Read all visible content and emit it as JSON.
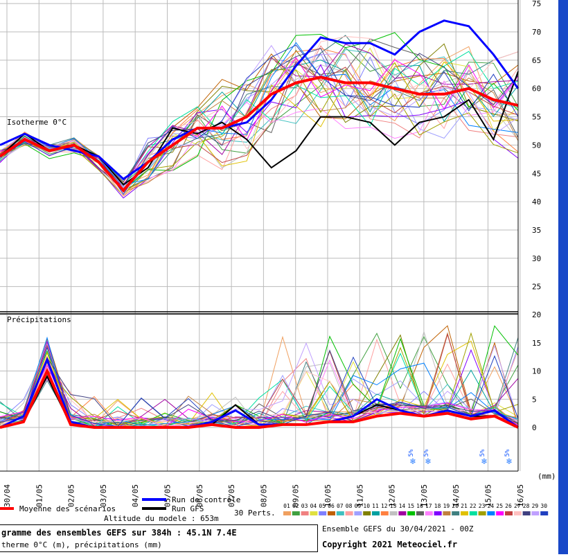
{
  "chart_data": {
    "type": "line",
    "x_tick_labels": [
      "30/04",
      "01/05",
      "02/05",
      "03/05",
      "04/05",
      "05/05",
      "06/05",
      "07/05",
      "08/05",
      "09/05",
      "10/05",
      "11/05",
      "12/05",
      "13/05",
      "14/05",
      "15/05",
      "16/05"
    ],
    "top_panel": {
      "label": "Isotherme 0°C",
      "y_ticks": [
        75,
        70,
        65,
        60,
        55,
        50,
        45,
        40,
        35,
        30,
        25
      ],
      "ylim": [
        21,
        75
      ],
      "mean_series": [
        48,
        51,
        49,
        50,
        47,
        42,
        47,
        50,
        53,
        53,
        55,
        59,
        61,
        62,
        61,
        61,
        60,
        59,
        59,
        60,
        58,
        57
      ],
      "control_series": [
        50,
        52,
        50,
        49,
        48,
        44,
        47,
        51,
        53,
        53,
        54,
        58,
        64,
        69,
        68,
        68,
        66,
        70,
        72,
        71,
        66,
        60
      ],
      "gfs_series": [
        48,
        52,
        49,
        50,
        48,
        43,
        46,
        53,
        52,
        54,
        51,
        46,
        49,
        55,
        55,
        54,
        50,
        54,
        55,
        58,
        51,
        63
      ]
    },
    "bottom_panel": {
      "label": "Précipitations",
      "unit_label": "(mm)",
      "y_ticks": [
        20,
        15,
        10,
        5,
        0
      ],
      "ylim": [
        0,
        20
      ],
      "mean_series": [
        0,
        1,
        10,
        0.5,
        0,
        0,
        0,
        0,
        0,
        0.5,
        0,
        0,
        0.5,
        0.5,
        1,
        1,
        2,
        2.5,
        2,
        2.5,
        1.5,
        2,
        0
      ],
      "control_series": [
        0,
        2,
        12,
        1,
        0,
        0,
        0,
        0,
        0,
        1,
        3,
        0.5,
        0.5,
        0.5,
        1,
        2,
        5,
        3,
        2,
        3,
        2,
        3,
        0
      ],
      "gfs_series": [
        0,
        1,
        9,
        0.5,
        0,
        0,
        0,
        0,
        0,
        0.5,
        4,
        0.5,
        0.5,
        0.5,
        1,
        2,
        4,
        3,
        2,
        3,
        2,
        2,
        0
      ]
    },
    "snow_markers": [
      {
        "label": "5%",
        "day": "12/05"
      },
      {
        "label": "5%",
        "day": "13/05"
      },
      {
        "label": "5%",
        "day": "15/05"
      },
      {
        "label": "5%",
        "day": "16/05"
      }
    ],
    "legend": {
      "mean": "Moyenne des scénarios",
      "control": "Run de contrôle",
      "gfs": "Run GFS",
      "perts": "30 Perts.",
      "altitude": "Altitude du modele : 653m",
      "pert_numbers": [
        "01",
        "02",
        "03",
        "04",
        "05",
        "06",
        "07",
        "08",
        "09",
        "10",
        "11",
        "12",
        "13",
        "14",
        "15",
        "16",
        "17",
        "18",
        "19",
        "20",
        "21",
        "22",
        "23",
        "24",
        "25",
        "26",
        "27",
        "28",
        "29",
        "30"
      ]
    },
    "colors": {
      "mean": "#ff0000",
      "control": "#0000ff",
      "gfs": "#000000",
      "perts": [
        "#f0a060",
        "#40a040",
        "#f08080",
        "#e0e040",
        "#8080ff",
        "#c06000",
        "#40c0c0",
        "#ffa0a0",
        "#a0a0ff",
        "#808000",
        "#00a0a0",
        "#ff8040",
        "#c0c0c0",
        "#a000a0",
        "#00c000",
        "#606060",
        "#ff80ff",
        "#8000ff",
        "#c08040",
        "#408080",
        "#e0c000",
        "#00e0a0",
        "#a0a000",
        "#0080ff",
        "#ff00ff",
        "#c04040",
        "#ffc0c0",
        "#404080",
        "#c0a0ff",
        "#2040c0"
      ]
    }
  },
  "footer": {
    "title": "gramme des ensembles GEFS sur 384h : 45.1N 7.4E",
    "subtitle": "therme 0°C (m), précipitations (mm)",
    "run_info": "Ensemble GEFS du 30/04/2021 - 00Z",
    "copyright": "Copyright 2021 Meteociel.fr"
  }
}
